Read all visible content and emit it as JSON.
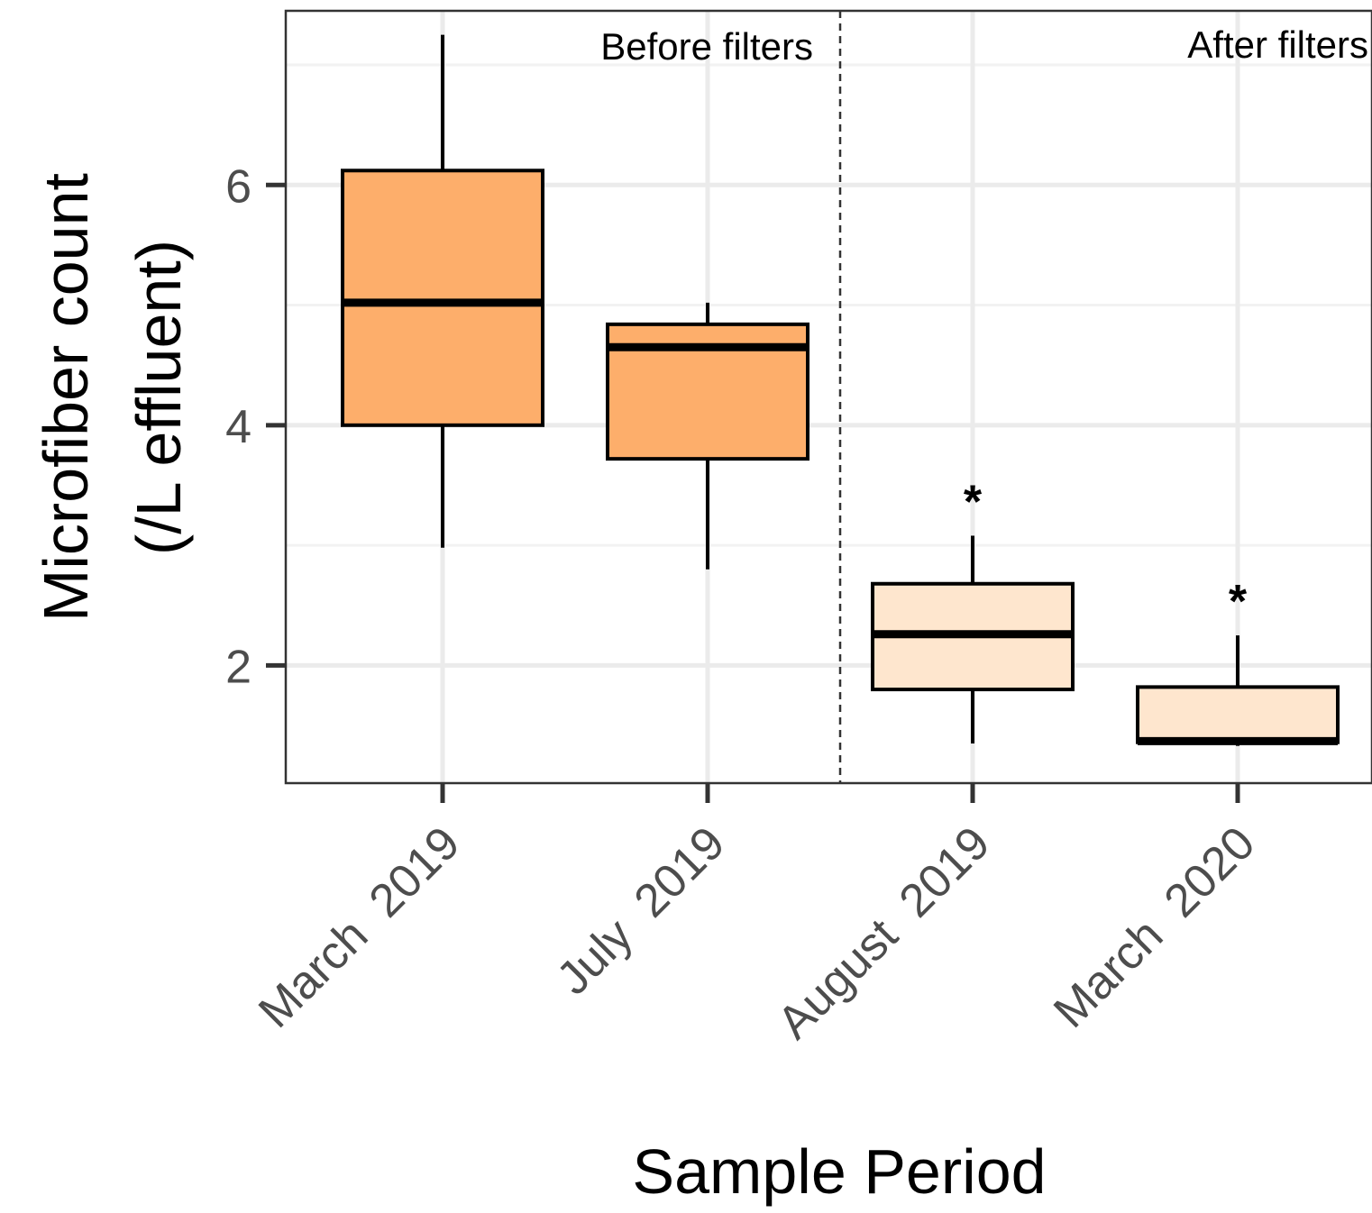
{
  "chart_data": {
    "type": "boxplot",
    "xlabel": "Sample Period",
    "ylabel_lines": [
      "Microfiber count",
      "(/L effluent)"
    ],
    "categories": [
      "March  2019",
      "July  2019",
      "August  2019",
      "March  2020"
    ],
    "boxes": [
      {
        "category": "March  2019",
        "whisker_low": 2.98,
        "q1": 4.0,
        "median": 5.02,
        "q3": 6.12,
        "whisker_high": 7.25,
        "fill": "#fdae6b",
        "annotation": ""
      },
      {
        "category": "July  2019",
        "whisker_low": 2.8,
        "q1": 3.72,
        "median": 4.65,
        "q3": 4.84,
        "whisker_high": 5.02,
        "fill": "#fdae6b",
        "annotation": ""
      },
      {
        "category": "August  2019",
        "whisker_low": 1.35,
        "q1": 1.8,
        "median": 2.26,
        "q3": 2.68,
        "whisker_high": 3.08,
        "fill": "#fee6ce",
        "annotation": "*"
      },
      {
        "category": "March  2020",
        "whisker_low": 1.33,
        "q1": 1.36,
        "median": 1.37,
        "q3": 1.82,
        "whisker_high": 2.25,
        "fill": "#fee6ce",
        "annotation": "*"
      }
    ],
    "yticks": [
      2,
      4,
      6
    ],
    "ylim": [
      1.02,
      7.45
    ],
    "grid": true,
    "divider_after_category_index": 1,
    "section_labels": [
      "Before filters",
      "After filters"
    ]
  }
}
